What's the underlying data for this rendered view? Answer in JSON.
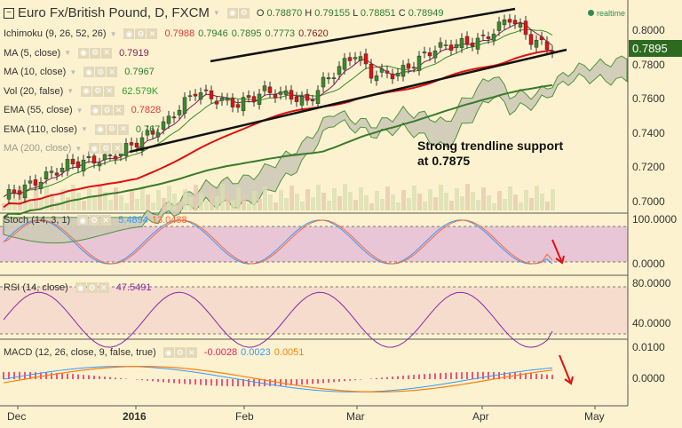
{
  "header": {
    "title": "Euro Fx/British Pound, D, FXCM",
    "o_label": "O",
    "o": "0.78870",
    "h_label": "H",
    "h": "0.79155",
    "l_label": "L",
    "l": "0.78851",
    "c_label": "C",
    "c": "0.78949",
    "realtime": "realtime"
  },
  "indicators": [
    {
      "label": "Ichimoku (9, 26, 52, 26)",
      "values": [
        "0.7988",
        "0.7946",
        "0.7895",
        "0.7773",
        "0.7620"
      ]
    },
    {
      "label": "MA (5, close)",
      "values": [
        "0.7919"
      ]
    },
    {
      "label": "MA (10, close)",
      "values": [
        "0.7967"
      ]
    },
    {
      "label": "Vol (20, false)",
      "values": [
        "62.579K"
      ]
    },
    {
      "label": "EMA (55, close)",
      "values": [
        "0.7828"
      ]
    },
    {
      "label": "EMA (110, close)",
      "values": [
        "0.767"
      ]
    },
    {
      "label": "MA (200, close)",
      "values": []
    }
  ],
  "panes": {
    "stoch": {
      "label": "Stoch (14, 3, 1)",
      "v1": "5.4894",
      "v2": "13.0488"
    },
    "rsi": {
      "label": "RSI (14, close)",
      "v1": "47.5491"
    },
    "macd": {
      "label": "MACD (12, 26, close, 9, false, true)",
      "v1": "-0.0028",
      "v2": "0.0023",
      "v3": "0.0051"
    }
  },
  "price_axis": [
    "0.8000",
    "0.7800",
    "0.7600",
    "0.7400",
    "0.7200",
    "0.7000"
  ],
  "last_price": "0.7895",
  "stoch_axis": [
    "100.0000",
    "0.0000"
  ],
  "rsi_axis": [
    "80.0000",
    "40.0000"
  ],
  "macd_axis": [
    "0.0100",
    "0.0000"
  ],
  "time_axis": [
    "Dec",
    "2016",
    "Feb",
    "Mar",
    "Apr",
    "May"
  ],
  "annotation": {
    "line1": "Strong trendline support",
    "line2": "at 0.7875"
  },
  "price_waypoints": [
    [
      0,
      0.703
    ],
    [
      5,
      0.71
    ],
    [
      12,
      0.722
    ],
    [
      20,
      0.726
    ],
    [
      25,
      0.735
    ],
    [
      30,
      0.745
    ],
    [
      36,
      0.765
    ],
    [
      40,
      0.76
    ],
    [
      44,
      0.757
    ],
    [
      49,
      0.765
    ],
    [
      54,
      0.762
    ],
    [
      57,
      0.758
    ],
    [
      60,
      0.77
    ],
    [
      66,
      0.787
    ],
    [
      69,
      0.775
    ],
    [
      74,
      0.775
    ],
    [
      81,
      0.79
    ],
    [
      90,
      0.795
    ],
    [
      95,
      0.808
    ],
    [
      99,
      0.795
    ],
    [
      103,
      0.7895
    ]
  ],
  "colors": {
    "bull": "#3a8a2a",
    "bear": "#e01010",
    "ema55": "#e01010",
    "ema110": "#3a7a2a",
    "stochK": "#3399ff",
    "stochD": "#ff6633",
    "rsi": "#8e24aa",
    "macd": "#3399ff",
    "signal": "#ff7f0e",
    "hist": "#e91e63"
  }
}
